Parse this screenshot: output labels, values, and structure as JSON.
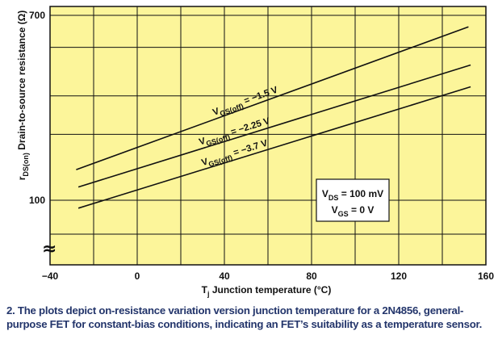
{
  "chart_data": {
    "type": "line",
    "y_scale": "log",
    "xlim": [
      -40,
      160
    ],
    "ylim": [
      60,
      700
    ],
    "x_ticks": [
      {
        "value": -40,
        "label": "−40"
      },
      {
        "value": 0,
        "label": "0"
      },
      {
        "value": 40,
        "label": "40"
      },
      {
        "value": 80,
        "label": "80"
      },
      {
        "value": 120,
        "label": "120"
      },
      {
        "value": 160,
        "label": "160"
      }
    ],
    "y_ticks": [
      {
        "value": 700,
        "label": "700"
      },
      {
        "value": 100,
        "label": "100"
      }
    ],
    "grid": true,
    "axis_break": "≈",
    "xlabel": {
      "main": "T",
      "sub": "j",
      "rest": " Junction temperature (°C)"
    },
    "ylabel": {
      "main": "r",
      "sub": "DS(on)",
      "rest": " Drain-to-source resistance (Ω)"
    },
    "series": [
      {
        "label_main": "V",
        "label_sub": "GS(off)",
        "label_rest": " = −1.5 V",
        "x": [
          -28,
          152
        ],
        "y": [
          138,
          620
        ]
      },
      {
        "label_main": "V",
        "label_sub": "GS(off)",
        "label_rest": " = −2.25 V",
        "x": [
          -27,
          153
        ],
        "y": [
          115,
          415
        ]
      },
      {
        "label_main": "V",
        "label_sub": "GS(off)",
        "label_rest": " = −3.7 V",
        "x": [
          -27,
          153
        ],
        "y": [
          92,
          330
        ]
      }
    ],
    "conditions": [
      {
        "main": "V",
        "sub": "DS",
        "rest": " = 100 mV"
      },
      {
        "main": "V",
        "sub": "GS",
        "rest": " = 0 V"
      }
    ],
    "colors": {
      "background": "#fcf59a",
      "grid": "#111111",
      "line": "#111111",
      "caption": "#23356b"
    }
  },
  "caption": "2. The plots depict on-resistance variation version junction temperature for a 2N4856, general-purpose FET for constant-bias conditions, indicating an FET’s suitability as a temperature sensor."
}
